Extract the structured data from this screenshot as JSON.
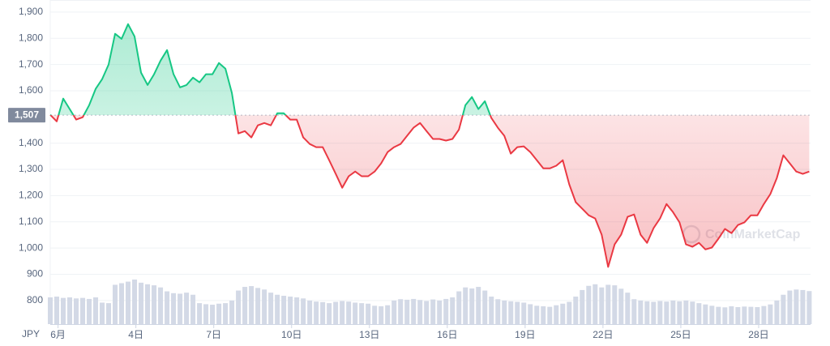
{
  "chart_data": {
    "type": "line",
    "currency": "JPY",
    "watermark": "CoinMarketCap",
    "up_color": "#16c784",
    "down_color": "#ea3943",
    "baseline": {
      "value": 1507,
      "label": "1,507"
    },
    "xlim": [
      0.7,
      30.0
    ],
    "ylim": [
      710,
      1946
    ],
    "grid": true,
    "yticks": [
      {
        "value": 1900,
        "label": "1,900"
      },
      {
        "value": 1800,
        "label": "1,800"
      },
      {
        "value": 1700,
        "label": "1,700"
      },
      {
        "value": 1600,
        "label": "1,600"
      },
      {
        "value": 1400,
        "label": "1,400"
      },
      {
        "value": 1300,
        "label": "1,300"
      },
      {
        "value": 1200,
        "label": "1,200"
      },
      {
        "value": 1100,
        "label": "1,100"
      },
      {
        "value": 1000,
        "label": "1,000"
      },
      900,
      800
    ],
    "xticks": [
      {
        "value": 1,
        "label": "6月"
      },
      {
        "value": 4,
        "label": "4日"
      },
      {
        "value": 7,
        "label": "7日"
      },
      {
        "value": 10,
        "label": "10日"
      },
      {
        "value": 13,
        "label": "13日"
      },
      {
        "value": 16,
        "label": "16日"
      },
      {
        "value": 19,
        "label": "19日"
      },
      {
        "value": 22,
        "label": "22日"
      },
      {
        "value": 25,
        "label": "25日"
      },
      {
        "value": 28,
        "label": "28日"
      }
    ],
    "x": [
      0.7,
      0.95,
      1.2,
      1.45,
      1.7,
      1.95,
      2.2,
      2.45,
      2.7,
      2.95,
      3.2,
      3.45,
      3.7,
      3.95,
      4.2,
      4.45,
      4.7,
      4.95,
      5.2,
      5.45,
      5.7,
      5.95,
      6.2,
      6.45,
      6.7,
      6.95,
      7.2,
      7.45,
      7.7,
      7.95,
      8.2,
      8.45,
      8.7,
      8.95,
      9.2,
      9.45,
      9.7,
      9.95,
      10.2,
      10.45,
      10.7,
      10.95,
      11.2,
      11.45,
      11.7,
      11.95,
      12.2,
      12.45,
      12.7,
      12.95,
      13.2,
      13.45,
      13.7,
      13.95,
      14.2,
      14.45,
      14.7,
      14.95,
      15.2,
      15.45,
      15.7,
      15.95,
      16.2,
      16.45,
      16.7,
      16.95,
      17.2,
      17.45,
      17.7,
      17.95,
      18.2,
      18.45,
      18.7,
      18.95,
      19.2,
      19.45,
      19.7,
      19.95,
      20.2,
      20.45,
      20.7,
      20.95,
      21.2,
      21.45,
      21.7,
      21.95,
      22.2,
      22.45,
      22.7,
      22.95,
      23.2,
      23.45,
      23.7,
      23.95,
      24.2,
      24.45,
      24.7,
      24.95,
      25.2,
      25.45,
      25.7,
      25.95,
      26.2,
      26.45,
      26.7,
      26.95,
      27.2,
      27.45,
      27.7,
      27.95,
      28.2,
      28.45,
      28.7,
      28.95,
      29.2,
      29.45,
      29.7,
      29.95
    ],
    "price": {
      "values": [
        1508,
        1483,
        1570,
        1530,
        1490,
        1499,
        1545,
        1607,
        1644,
        1700,
        1817,
        1798,
        1854,
        1807,
        1669,
        1622,
        1663,
        1715,
        1755,
        1663,
        1613,
        1622,
        1650,
        1632,
        1663,
        1663,
        1706,
        1684,
        1591,
        1437,
        1446,
        1422,
        1468,
        1477,
        1468,
        1514,
        1514,
        1490,
        1490,
        1422,
        1397,
        1385,
        1385,
        1335,
        1283,
        1230,
        1274,
        1292,
        1274,
        1274,
        1292,
        1323,
        1366,
        1385,
        1397,
        1428,
        1459,
        1477,
        1446,
        1416,
        1416,
        1410,
        1416,
        1452,
        1545,
        1576,
        1530,
        1560,
        1496,
        1459,
        1428,
        1360,
        1385,
        1388,
        1366,
        1335,
        1304,
        1304,
        1314,
        1335,
        1243,
        1175,
        1150,
        1125,
        1113,
        1051,
        928,
        1014,
        1051,
        1119,
        1128,
        1051,
        1020,
        1076,
        1113,
        1168,
        1137,
        1098,
        1014,
        1005,
        1020,
        995,
        1002,
        1036,
        1073,
        1057,
        1088,
        1098,
        1125,
        1125,
        1168,
        1206,
        1267,
        1354,
        1323,
        1292,
        1283,
        1292
      ]
    },
    "volume": {
      "color": "#d3d9e6",
      "values": [
        812,
        815,
        810,
        812,
        808,
        810,
        806,
        812,
        792,
        790,
        860,
        866,
        872,
        880,
        868,
        862,
        858,
        850,
        835,
        828,
        826,
        830,
        822,
        790,
        786,
        784,
        788,
        790,
        800,
        838,
        852,
        855,
        848,
        842,
        830,
        822,
        818,
        815,
        812,
        808,
        800,
        796,
        794,
        790,
        795,
        798,
        796,
        792,
        790,
        788,
        780,
        778,
        782,
        800,
        805,
        803,
        806,
        802,
        798,
        804,
        800,
        806,
        812,
        835,
        850,
        846,
        852,
        838,
        815,
        805,
        800,
        797,
        795,
        792,
        786,
        780,
        778,
        776,
        782,
        788,
        795,
        815,
        840,
        856,
        862,
        850,
        860,
        858,
        845,
        830,
        805,
        800,
        797,
        795,
        798,
        796,
        800,
        797,
        800,
        796,
        790,
        785,
        780,
        776,
        774,
        778,
        775,
        777,
        776,
        775,
        779,
        785,
        800,
        822,
        838,
        842,
        840,
        836
      ]
    }
  }
}
